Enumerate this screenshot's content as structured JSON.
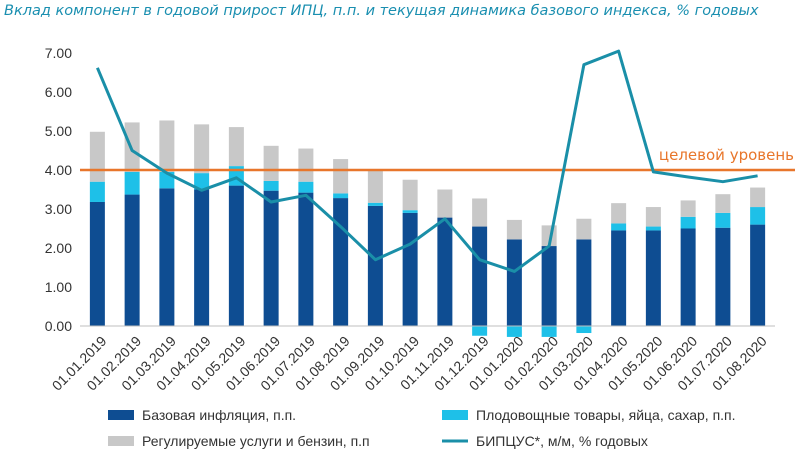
{
  "chart_data": {
    "type": "bar",
    "title": "Вклад компонент в годовой прирост ИПЦ, п.п. и текущая динамика базового индекса, % годовых",
    "xlabel": "",
    "ylabel": "",
    "categories": [
      "01.01.2019",
      "01.02.2019",
      "01.03.2019",
      "01.04.2019",
      "01.05.2019",
      "01.06.2019",
      "01.07.2019",
      "01.08.2019",
      "01.09.2019",
      "01.10.2019",
      "01.11.2019",
      "01.12.2019",
      "01.01.2020",
      "01.02.2020",
      "01.03.2020",
      "01.04.2020",
      "01.05.2020",
      "01.06.2020",
      "01.07.2020",
      "01.08.2020"
    ],
    "y_ticks": [
      "0.00",
      "1.00",
      "2.00",
      "3.00",
      "4.00",
      "5.00",
      "6.00",
      "7.00"
    ],
    "ylim": [
      0,
      7.5
    ],
    "grid": false,
    "legend_position": "bottom",
    "series": [
      {
        "name": "Базовая инфляция, п.п.",
        "kind": "bar",
        "color": "#0e4d92",
        "values": [
          3.18,
          3.37,
          3.53,
          3.5,
          3.6,
          3.47,
          3.42,
          3.28,
          3.08,
          2.9,
          2.78,
          2.55,
          2.22,
          2.05,
          2.22,
          2.45,
          2.45,
          2.5,
          2.52,
          2.6
        ]
      },
      {
        "name": "Плодовощные товары, яйца, сахар, п.п.",
        "kind": "bar",
        "color": "#1ec0e8",
        "values": [
          0.52,
          0.58,
          0.42,
          0.42,
          0.5,
          0.25,
          0.28,
          0.12,
          0.08,
          0.07,
          0.0,
          -0.25,
          -0.28,
          -0.28,
          -0.18,
          0.18,
          0.1,
          0.3,
          0.38,
          0.45
        ]
      },
      {
        "name": "Регулируемые услуги и бензин, п.п",
        "kind": "bar",
        "color": "#c8c8c8",
        "values": [
          1.28,
          1.27,
          1.32,
          1.25,
          1.0,
          0.9,
          0.85,
          0.88,
          0.84,
          0.78,
          0.72,
          0.72,
          0.5,
          0.53,
          0.53,
          0.52,
          0.5,
          0.42,
          0.48,
          0.5
        ]
      },
      {
        "name": "БИПЦУС*, м/м, % годовых",
        "kind": "line",
        "color": "#1a8fa8",
        "values": [
          6.62,
          4.5,
          3.92,
          3.48,
          3.8,
          3.18,
          3.35,
          2.55,
          1.7,
          2.1,
          2.75,
          1.7,
          1.4,
          2.05,
          6.7,
          7.05,
          3.95,
          3.82,
          3.7,
          3.85
        ]
      }
    ],
    "annotations": [
      {
        "text": "целевой уровень",
        "kind": "hline",
        "y": 4.0,
        "color": "#e8762b"
      }
    ]
  }
}
